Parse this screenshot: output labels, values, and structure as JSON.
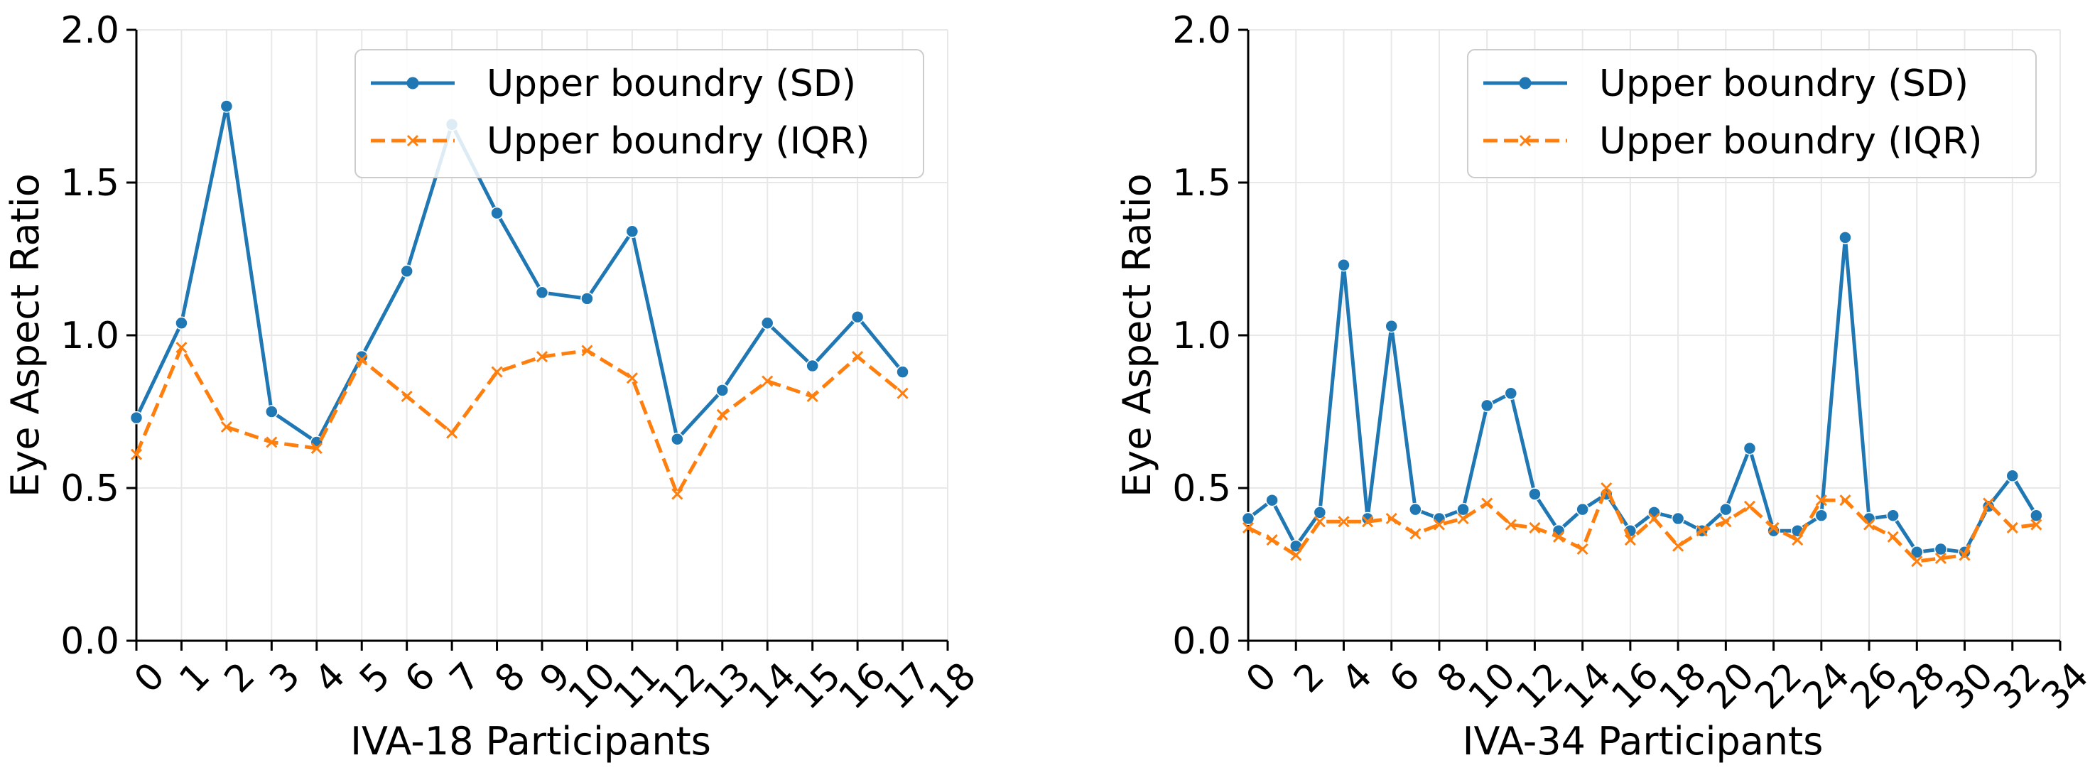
{
  "chart_data": [
    {
      "type": "line",
      "xlabel": "IVA-18 Participants",
      "ylabel": "Eye Aspect Ratio",
      "xlim": [
        0,
        18
      ],
      "ylim": [
        0,
        2.0
      ],
      "xticks": [
        "0",
        "1",
        "2",
        "3",
        "4",
        "5",
        "6",
        "7",
        "8",
        "9",
        "10",
        "11",
        "12",
        "13",
        "14",
        "15",
        "16",
        "17",
        "18"
      ],
      "yticks": [
        "0.0",
        "0.5",
        "1.0",
        "1.5",
        "2.0"
      ],
      "grid": true,
      "legend_position": "top-right",
      "x": [
        0,
        1,
        2,
        3,
        4,
        5,
        6,
        7,
        8,
        9,
        10,
        11,
        12,
        13,
        14,
        15,
        16,
        17
      ],
      "series": [
        {
          "name": "Upper boundry (SD)",
          "color": "#1f77b4",
          "marker": "circle",
          "linestyle": "solid",
          "values": [
            0.73,
            1.04,
            1.75,
            0.75,
            0.65,
            0.93,
            1.21,
            1.69,
            1.4,
            1.14,
            1.12,
            1.34,
            0.66,
            0.82,
            1.04,
            0.9,
            1.06,
            0.88
          ]
        },
        {
          "name": "Upper boundry (IQR)",
          "color": "#ff7f0e",
          "marker": "x",
          "linestyle": "dashed",
          "values": [
            0.61,
            0.96,
            0.7,
            0.65,
            0.63,
            0.92,
            0.8,
            0.68,
            0.88,
            0.93,
            0.95,
            0.86,
            0.48,
            0.74,
            0.85,
            0.8,
            0.93,
            0.81
          ]
        }
      ]
    },
    {
      "type": "line",
      "xlabel": "IVA-34 Participants",
      "ylabel": "Eye Aspect Ratio",
      "xlim": [
        0,
        34
      ],
      "ylim": [
        0,
        2.0
      ],
      "xticks": [
        "0",
        "2",
        "4",
        "6",
        "8",
        "10",
        "12",
        "14",
        "16",
        "18",
        "20",
        "22",
        "24",
        "26",
        "28",
        "30",
        "32",
        "34"
      ],
      "yticks": [
        "0.0",
        "0.5",
        "1.0",
        "1.5",
        "2.0"
      ],
      "grid": true,
      "legend_position": "top-right",
      "x": [
        0,
        1,
        2,
        3,
        4,
        5,
        6,
        7,
        8,
        9,
        10,
        11,
        12,
        13,
        14,
        15,
        16,
        17,
        18,
        19,
        20,
        21,
        22,
        23,
        24,
        25,
        26,
        27,
        28,
        29,
        30,
        31,
        32,
        33
      ],
      "series": [
        {
          "name": "Upper boundry (SD)",
          "color": "#1f77b4",
          "marker": "circle",
          "linestyle": "solid",
          "values": [
            0.4,
            0.46,
            0.31,
            0.42,
            1.23,
            0.4,
            1.03,
            0.43,
            0.4,
            0.43,
            0.77,
            0.81,
            0.48,
            0.36,
            0.43,
            0.48,
            0.36,
            0.42,
            0.4,
            0.36,
            0.43,
            0.63,
            0.36,
            0.36,
            0.41,
            1.32,
            0.4,
            0.41,
            0.29,
            0.3,
            0.29,
            0.44,
            0.54,
            0.41
          ]
        },
        {
          "name": "Upper boundry (IQR)",
          "color": "#ff7f0e",
          "marker": "x",
          "linestyle": "dashed",
          "values": [
            0.37,
            0.33,
            0.28,
            0.39,
            0.39,
            0.39,
            0.4,
            0.35,
            0.38,
            0.4,
            0.45,
            0.38,
            0.37,
            0.34,
            0.3,
            0.5,
            0.33,
            0.4,
            0.31,
            0.36,
            0.39,
            0.44,
            0.37,
            0.33,
            0.46,
            0.46,
            0.38,
            0.34,
            0.26,
            0.27,
            0.28,
            0.45,
            0.37,
            0.38
          ]
        }
      ]
    }
  ]
}
